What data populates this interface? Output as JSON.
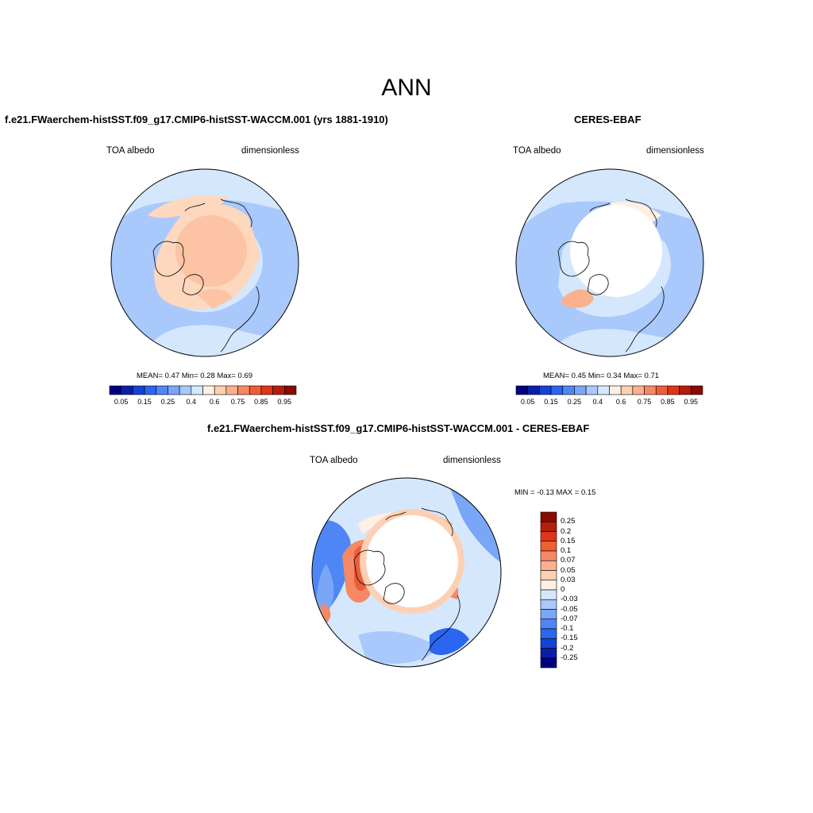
{
  "main_title": "ANN",
  "panels": [
    {
      "title": "f.e21.FWaerchem-histSST.f09_g17.CMIP6-histSST-WACCM.001 (yrs 1881-1910)",
      "variable": "TOA albedo",
      "units": "dimensionless",
      "stats": "MEAN=   0.47  Min=   0.28  Max=   0.69"
    },
    {
      "title": "CERES-EBAF",
      "variable": "TOA albedo",
      "units": "dimensionless",
      "stats": "MEAN=   0.45  Min=   0.34  Max=   0.71"
    },
    {
      "title": "f.e21.FWaerchem-histSST.f09_g17.CMIP6-histSST-WACCM.001 - CERES-EBAF",
      "variable": "TOA albedo",
      "units": "dimensionless",
      "stats": "MIN =   -0.13 MAX =   0.15"
    }
  ],
  "colorbar_abs": {
    "colors": [
      "#00007f",
      "#0a1fa8",
      "#1443d6",
      "#2a66ee",
      "#4f86f5",
      "#7aa6f8",
      "#a9c8fb",
      "#d4e7fd",
      "#fff0e2",
      "#fdd0b3",
      "#fbb08e",
      "#f58966",
      "#ee5d3a",
      "#df3518",
      "#b31d0b",
      "#8b0a02"
    ],
    "labels": [
      "0.05",
      "0.15",
      "0.25",
      "0.4",
      "0.6",
      "0.75",
      "0.85",
      "0.95"
    ]
  },
  "colorbar_diff": {
    "colors": [
      "#8b0a02",
      "#b31d0b",
      "#df3518",
      "#f0602e",
      "#f58966",
      "#fbb08e",
      "#fdd0b3",
      "#fff0e2",
      "#d4e7fd",
      "#a9c8fb",
      "#7aa6f8",
      "#4f86f5",
      "#2a66ee",
      "#1443d6",
      "#0a1fa8",
      "#00007f"
    ],
    "labels": [
      "0.25",
      "0.2",
      "0.15",
      "0.1",
      "0.07",
      "0.05",
      "0.03",
      "0",
      "-0.03",
      "-0.05",
      "-0.07",
      "-0.1",
      "-0.15",
      "-0.2",
      "-0.25"
    ]
  }
}
